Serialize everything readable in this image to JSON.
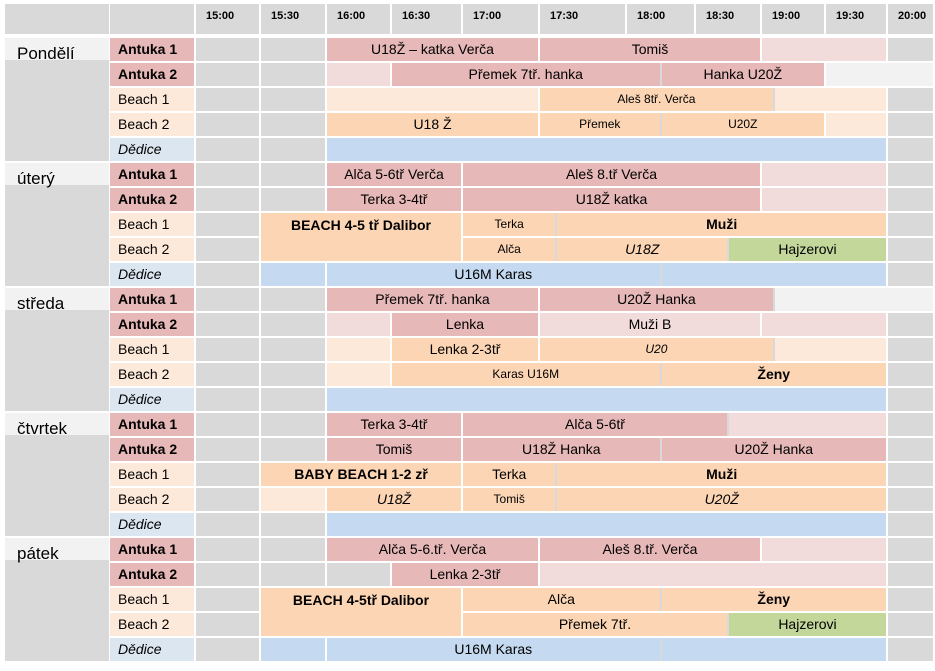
{
  "times": [
    "15:00",
    "15:30",
    "16:00",
    "16:30",
    "17:00",
    "17:30",
    "18:00",
    "18:30",
    "19:00",
    "19:30",
    "20:00"
  ],
  "colors": {
    "antuka": "#e6b8b7",
    "antuka_light": "#f2dcdb",
    "beach": "#fcd5b4",
    "beach_light": "#fde9d9",
    "dedice": "#c5d9f1",
    "green": "#c4d79b",
    "empty": "#d9d9d9"
  },
  "days": [
    {
      "name": "Pondělí",
      "courts": [
        {
          "label": "Antuka 1",
          "style": "antuka",
          "events": [
            {
              "text": "U18Ž – katka Verča",
              "s": 2,
              "e": 5,
              "c": "red"
            },
            {
              "text": "Tomiš",
              "s": 5,
              "e": 8,
              "c": "red"
            },
            {
              "text": "",
              "s": 8,
              "e": 10,
              "c": "red2"
            }
          ]
        },
        {
          "label": "Antuka 2",
          "style": "antuka",
          "events": [
            {
              "text": "",
              "s": 2,
              "e": 3,
              "c": "red2"
            },
            {
              "text": "Přemek 7tř. hanka",
              "s": 3,
              "e": 6.5,
              "c": "red"
            },
            {
              "text": "Hanka U20Ž",
              "s": 6.5,
              "e": 9,
              "c": "red"
            },
            {
              "text": "",
              "s": 9,
              "e": 11,
              "c": "lgray"
            }
          ]
        },
        {
          "label": "Beach 1",
          "style": "beach",
          "events": [
            {
              "text": "",
              "s": 2,
              "e": 5,
              "c": "or2"
            },
            {
              "text": "Aleš 8tř.  Verča",
              "s": 5,
              "e": 8.2,
              "c": "or",
              "sm": true
            },
            {
              "text": "",
              "s": 8.2,
              "e": 10,
              "c": "or2"
            }
          ]
        },
        {
          "label": "Beach 2",
          "style": "beach",
          "events": [
            {
              "text": "U18 Ž",
              "s": 2,
              "e": 5,
              "c": "or"
            },
            {
              "text": "Přemek",
              "s": 5,
              "e": 6.5,
              "c": "or",
              "sm": true
            },
            {
              "text": "U20Z",
              "s": 6.5,
              "e": 9,
              "c": "or",
              "sm": true
            },
            {
              "text": "",
              "s": 9,
              "e": 10,
              "c": "or2"
            }
          ]
        },
        {
          "label": "Dědice",
          "style": "dedice",
          "events": [
            {
              "text": "",
              "s": 2,
              "e": 10,
              "c": "blue"
            }
          ]
        }
      ]
    },
    {
      "name": "úterý",
      "courts": [
        {
          "label": "Antuka 1",
          "style": "antuka",
          "events": [
            {
              "text": "Alča 5-6tř Verča",
              "s": 2,
              "e": 4,
              "c": "red"
            },
            {
              "text": "Aleš 8.tř Verča",
              "s": 4,
              "e": 8,
              "c": "red"
            },
            {
              "text": "",
              "s": 8,
              "e": 10,
              "c": "red2"
            }
          ]
        },
        {
          "label": "Antuka 2",
          "style": "antuka",
          "events": [
            {
              "text": "Terka 3-4tř",
              "s": 2,
              "e": 4,
              "c": "red"
            },
            {
              "text": "U18Ž katka",
              "s": 4,
              "e": 8,
              "c": "red"
            },
            {
              "text": "",
              "s": 8,
              "e": 10,
              "c": "red2"
            }
          ]
        },
        {
          "label": "Beach 1",
          "style": "beach",
          "events": [
            {
              "text": "BEACH  4-5 tř Dalibor",
              "s": 1,
              "e": 4,
              "c": "or",
              "b": true,
              "rows": 2
            },
            {
              "text": "Terka",
              "s": 4,
              "e": 5.2,
              "c": "or",
              "sm": true
            },
            {
              "text": "Muži",
              "s": 5.2,
              "e": 10,
              "c": "or",
              "b": true
            }
          ]
        },
        {
          "label": "Beach 2",
          "style": "beach",
          "events": [
            {
              "text": "Alča",
              "s": 4,
              "e": 5.2,
              "c": "or",
              "sm": true
            },
            {
              "text": "U18Z",
              "s": 5.2,
              "e": 7.5,
              "c": "or",
              "i": true
            },
            {
              "text": "Hajzerovi",
              "s": 7.5,
              "e": 10,
              "c": "green"
            }
          ]
        },
        {
          "label": "Dědice",
          "style": "dedice",
          "events": [
            {
              "text": "",
              "s": 1,
              "e": 2,
              "c": "blue"
            },
            {
              "text": "U16M Karas",
              "s": 2,
              "e": 6.5,
              "c": "blue"
            },
            {
              "text": "",
              "s": 6.5,
              "e": 10,
              "c": "blue"
            }
          ]
        }
      ]
    },
    {
      "name": "středa",
      "courts": [
        {
          "label": "Antuka 1",
          "style": "antuka",
          "events": [
            {
              "text": "Přemek 7tř. hanka",
              "s": 2,
              "e": 5,
              "c": "red"
            },
            {
              "text": "U20Ž Hanka",
              "s": 5,
              "e": 8.2,
              "c": "red"
            },
            {
              "text": "",
              "s": 8.2,
              "e": 11,
              "c": "lgray"
            }
          ]
        },
        {
          "label": "Antuka 2",
          "style": "antuka",
          "events": [
            {
              "text": "",
              "s": 2,
              "e": 3,
              "c": "red2"
            },
            {
              "text": "Lenka",
              "s": 3,
              "e": 5,
              "c": "red"
            },
            {
              "text": "Muži B",
              "s": 5,
              "e": 8,
              "c": "red2"
            },
            {
              "text": "",
              "s": 8,
              "e": 10,
              "c": "red2"
            }
          ]
        },
        {
          "label": "Beach 1",
          "style": "beach",
          "events": [
            {
              "text": "",
              "s": 2,
              "e": 3,
              "c": "or2"
            },
            {
              "text": "Lenka 2-3tř",
              "s": 3,
              "e": 5,
              "c": "or"
            },
            {
              "text": "U20",
              "s": 5,
              "e": 8.2,
              "c": "or",
              "sm": true,
              "i": true
            },
            {
              "text": "",
              "s": 8.2,
              "e": 10,
              "c": "or2"
            }
          ]
        },
        {
          "label": "Beach 2",
          "style": "beach",
          "events": [
            {
              "text": "",
              "s": 2,
              "e": 3,
              "c": "or2"
            },
            {
              "text": "Karas U16M",
              "s": 3,
              "e": 6.5,
              "c": "or",
              "sm": true
            },
            {
              "text": "Ženy",
              "s": 6.5,
              "e": 10,
              "c": "or",
              "b": true
            }
          ]
        },
        {
          "label": "Dědice",
          "style": "dedice",
          "events": [
            {
              "text": "",
              "s": 2,
              "e": 10,
              "c": "blue"
            }
          ]
        }
      ]
    },
    {
      "name": "čtvrtek",
      "courts": [
        {
          "label": "Antuka 1",
          "style": "antuka",
          "events": [
            {
              "text": "Terka 3-4tř",
              "s": 2,
              "e": 4,
              "c": "red"
            },
            {
              "text": "Alča 5-6tř",
              "s": 4,
              "e": 7.5,
              "c": "red"
            },
            {
              "text": "",
              "s": 7.5,
              "e": 10,
              "c": "red2"
            }
          ]
        },
        {
          "label": "Antuka 2",
          "style": "antuka",
          "events": [
            {
              "text": "Tomiš",
              "s": 2,
              "e": 4,
              "c": "red"
            },
            {
              "text": "U18Ž  Hanka",
              "s": 4,
              "e": 6.5,
              "c": "red"
            },
            {
              "text": "U20Ž Hanka",
              "s": 6.5,
              "e": 10,
              "c": "red"
            }
          ]
        },
        {
          "label": "Beach 1",
          "style": "beach",
          "events": [
            {
              "text": "BABY BEACH 1-2 zř",
              "s": 1,
              "e": 4,
              "c": "or",
              "b": true
            },
            {
              "text": "Terka",
              "s": 4,
              "e": 5.2,
              "c": "or"
            },
            {
              "text": "Muži",
              "s": 5.2,
              "e": 10,
              "c": "or",
              "b": true
            }
          ]
        },
        {
          "label": "Beach 2",
          "style": "beach",
          "events": [
            {
              "text": "",
              "s": 1,
              "e": 2,
              "c": "or2"
            },
            {
              "text": "U18Ž",
              "s": 2,
              "e": 4,
              "c": "or",
              "i": true
            },
            {
              "text": "Tomiš",
              "s": 4,
              "e": 5.2,
              "c": "or",
              "sm": true
            },
            {
              "text": "U20Ž",
              "s": 5.2,
              "e": 10,
              "c": "or",
              "i": true
            }
          ]
        },
        {
          "label": "Dědice",
          "style": "dedice",
          "events": [
            {
              "text": "",
              "s": 2,
              "e": 10,
              "c": "blue"
            }
          ]
        }
      ]
    },
    {
      "name": "pátek",
      "courts": [
        {
          "label": "Antuka 1",
          "style": "antuka",
          "events": [
            {
              "text": "Alča 5-6.tř. Verča",
              "s": 2,
              "e": 5,
              "c": "red"
            },
            {
              "text": "Aleš 8.tř. Verča",
              "s": 5,
              "e": 8,
              "c": "red"
            },
            {
              "text": "",
              "s": 8,
              "e": 10,
              "c": "red2"
            }
          ]
        },
        {
          "label": "Antuka 2",
          "style": "antuka",
          "events": [
            {
              "text": "Lenka 2-3tř",
              "s": 3,
              "e": 5,
              "c": "red"
            },
            {
              "text": "",
              "s": 5,
              "e": 10,
              "c": "red2"
            }
          ]
        },
        {
          "label": "Beach 1",
          "style": "beach",
          "events": [
            {
              "text": "BEACH  4-5tř Dalibor",
              "s": 1,
              "e": 4,
              "c": "or",
              "b": true,
              "rows": 2
            },
            {
              "text": "Alča",
              "s": 4,
              "e": 6.5,
              "c": "or"
            },
            {
              "text": "Ženy",
              "s": 6.5,
              "e": 10,
              "c": "or",
              "b": true
            }
          ]
        },
        {
          "label": "Beach 2",
          "style": "beach",
          "events": [
            {
              "text": "Přemek 7tř.",
              "s": 4,
              "e": 7.5,
              "c": "or"
            },
            {
              "text": "Hajzerovi",
              "s": 7.5,
              "e": 10,
              "c": "green"
            }
          ]
        },
        {
          "label": "Dědice",
          "style": "dedice",
          "events": [
            {
              "text": "",
              "s": 1,
              "e": 2,
              "c": "blue"
            },
            {
              "text": "U16M Karas",
              "s": 2,
              "e": 6.5,
              "c": "blue"
            },
            {
              "text": "",
              "s": 6.5,
              "e": 10,
              "c": "blue"
            }
          ]
        }
      ]
    }
  ]
}
